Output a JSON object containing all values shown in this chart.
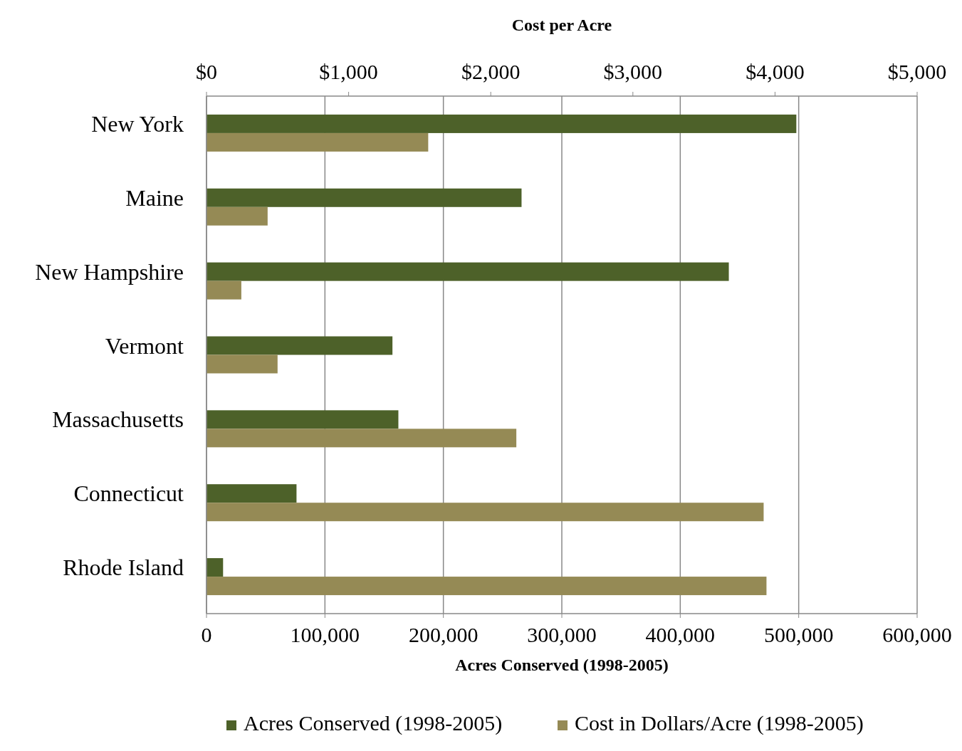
{
  "chart_data": {
    "type": "bar",
    "orientation": "horizontal",
    "categories": [
      "New York",
      "Maine",
      "New Hampshire",
      "Vermont",
      "Massachusetts",
      "Connecticut",
      "Rhode Island"
    ],
    "series": [
      {
        "name": "Acres Conserved (1998-2005)",
        "color": "#4d6129",
        "values": [
          498000,
          266000,
          441000,
          157000,
          162000,
          76000,
          14000
        ]
      },
      {
        "name": "Cost in Dollars/Acre (1998-2005)",
        "color": "#958a55",
        "axis": "x2",
        "values": [
          1560,
          430,
          245,
          500,
          2180,
          3920,
          3940
        ]
      }
    ],
    "xlabel": "Acres Conserved (1998-2005)",
    "x2label": "Cost per Acre",
    "xlim": [
      0,
      600000
    ],
    "xticks": [
      0,
      {
        "value": 100000,
        "label": "100,000"
      },
      {
        "value": 200000,
        "label": "200,000"
      },
      {
        "value": 300000,
        "label": "300,000"
      },
      {
        "value": 400000,
        "label": "400,000"
      },
      {
        "value": 500000,
        "label": "500,000"
      },
      {
        "value": 600000,
        "label": "600,000"
      }
    ],
    "x2lim": [
      0,
      5000
    ],
    "x2ticks": [
      {
        "value": 0,
        "label": "$0"
      },
      {
        "value": 1000,
        "label": "$1,000"
      },
      {
        "value": 2000,
        "label": "$2,000"
      },
      {
        "value": 3000,
        "label": "$3,000"
      },
      {
        "value": 4000,
        "label": "$4,000"
      },
      {
        "value": 5000,
        "label": "$5,000"
      }
    ],
    "grid": "x",
    "legend": "bottom"
  }
}
